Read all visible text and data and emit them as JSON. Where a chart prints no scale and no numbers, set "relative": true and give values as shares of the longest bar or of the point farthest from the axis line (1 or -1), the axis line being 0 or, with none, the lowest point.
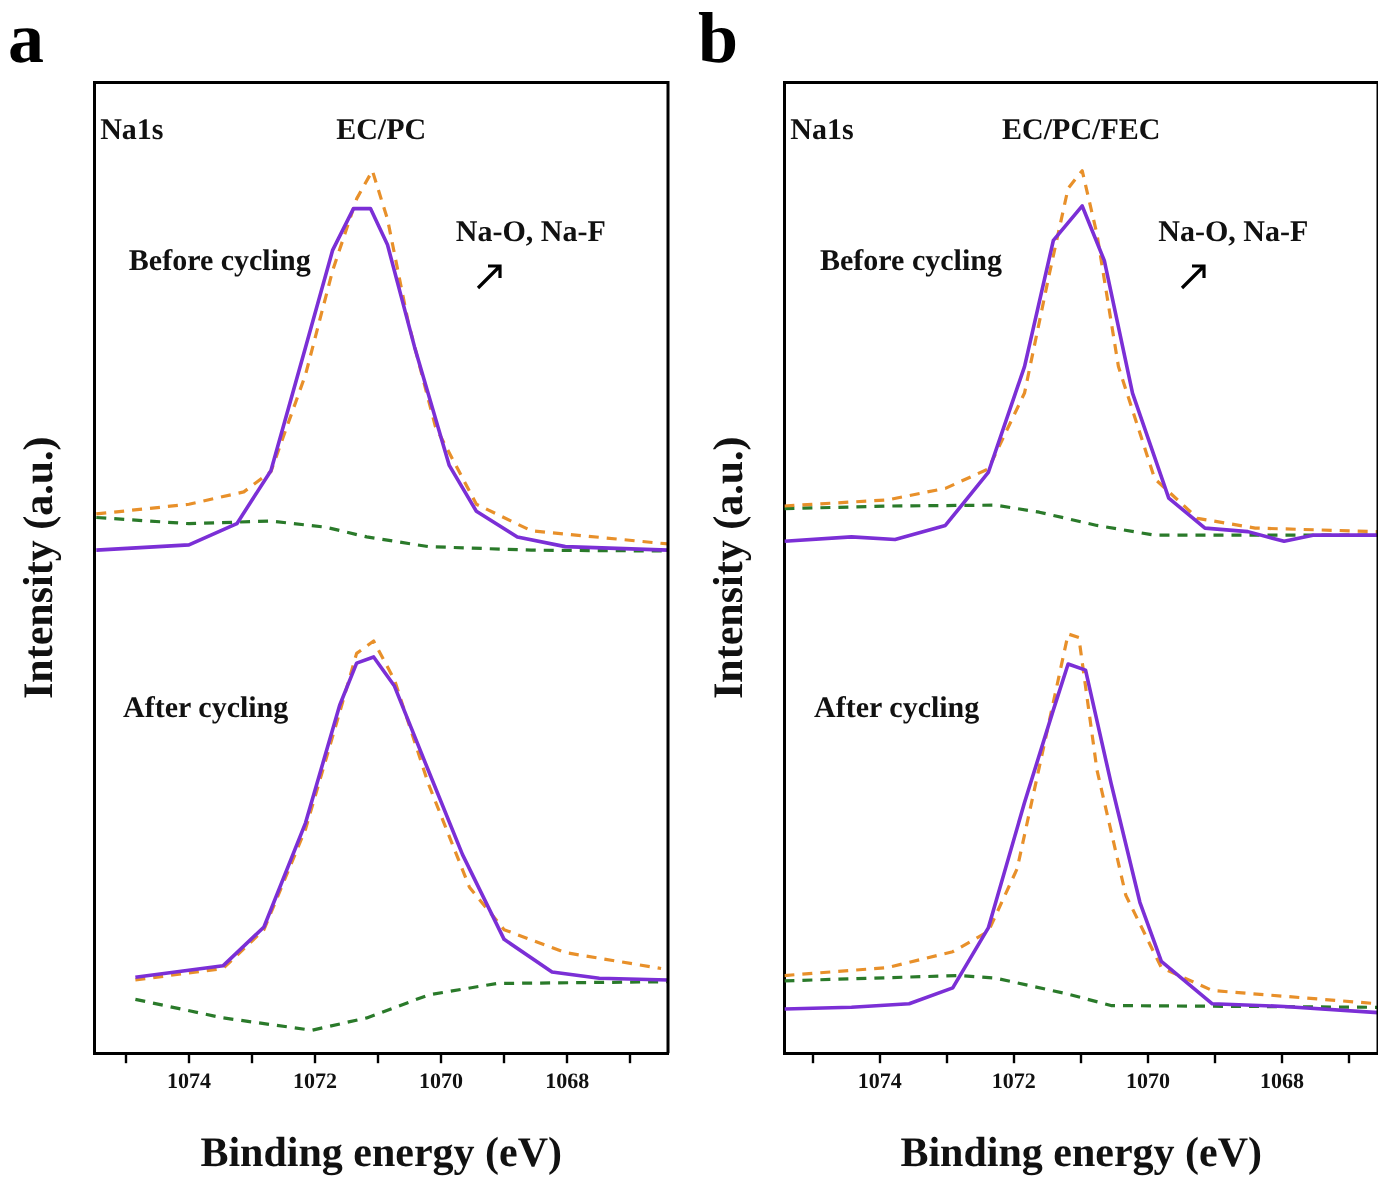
{
  "chart_data": [
    {
      "type": "line",
      "title": "a",
      "xlabel": "Binding energy (eV)",
      "ylabel": "Intensity (a.u.)",
      "relative": true,
      "grid": false,
      "legend": false,
      "marker": "none",
      "xlim": [
        1075.5,
        1066.4
      ],
      "xticks": [
        {
          "value": 1075,
          "label": null
        },
        1074,
        {
          "value": 1073,
          "label": null
        },
        1072,
        {
          "value": 1071,
          "label": null
        },
        1070,
        {
          "value": 1069,
          "label": null
        },
        1068,
        {
          "value": 1067,
          "label": null
        }
      ],
      "annotations": [
        "Na1s",
        "EC/PC",
        "Before cycling",
        "Na-O, Na-F",
        "After cycling"
      ],
      "series": [
        {
          "color": "#7b2fd6",
          "line_style": "solid",
          "x": [
            1075.47,
            1074,
            1073.24,
            1072.7,
            1072.15,
            1071.72,
            1071.39,
            1071.12,
            1070.85,
            1070.42,
            1069.87,
            1069.44,
            1068.79,
            1068.03,
            1066.4
          ],
          "values": [
            0.57,
            0.576,
            0.6,
            0.66,
            0.8,
            0.91,
            0.957,
            0.957,
            0.916,
            0.8,
            0.666,
            0.614,
            0.585,
            0.574,
            0.57
          ]
        },
        {
          "color": "#e8902a",
          "line_style": "dashed",
          "x": [
            1075.47,
            1074,
            1073.13,
            1072.7,
            1072.15,
            1071.72,
            1071.34,
            1071.09,
            1070.85,
            1070.52,
            1070.09,
            1069.44,
            1068.57,
            1066.4
          ],
          "values": [
            0.611,
            0.622,
            0.636,
            0.659,
            0.769,
            0.887,
            0.968,
            1.0,
            0.945,
            0.828,
            0.71,
            0.622,
            0.592,
            0.577
          ]
        },
        {
          "color": "#2a7a2a",
          "line_style": "dashed",
          "x": [
            1075.47,
            1074,
            1072.7,
            1071.83,
            1071.18,
            1070.2,
            1068.57,
            1066.4
          ],
          "values": [
            0.607,
            0.6,
            0.603,
            0.596,
            0.585,
            0.574,
            0.57,
            0.569
          ]
        },
        {
          "color": "#7b2fd6",
          "line_style": "solid",
          "x": [
            1074.85,
            1073.46,
            1072.81,
            1072.15,
            1071.61,
            1071.34,
            1071.07,
            1070.74,
            1070.2,
            1069.66,
            1069.0,
            1068.24,
            1067.49,
            1066.4
          ],
          "values": [
            0.086,
            0.099,
            0.143,
            0.261,
            0.394,
            0.442,
            0.449,
            0.416,
            0.32,
            0.225,
            0.129,
            0.092,
            0.085,
            0.083
          ]
        },
        {
          "color": "#e8902a",
          "line_style": "dashed",
          "x": [
            1074.85,
            1073.46,
            1072.81,
            1072.15,
            1071.61,
            1071.34,
            1071.07,
            1070.74,
            1070.2,
            1069.55,
            1069.0,
            1068.03,
            1066.51
          ],
          "values": [
            0.083,
            0.096,
            0.14,
            0.254,
            0.386,
            0.453,
            0.467,
            0.423,
            0.305,
            0.188,
            0.14,
            0.114,
            0.096
          ]
        },
        {
          "color": "#2a7a2a",
          "line_style": "dashed",
          "x": [
            1074.85,
            1073.46,
            1072.05,
            1071.18,
            1070.2,
            1069.12,
            1066.4
          ],
          "values": [
            0.061,
            0.04,
            0.026,
            0.04,
            0.066,
            0.079,
            0.081
          ]
        }
      ]
    },
    {
      "type": "line",
      "title": "b",
      "xlabel": "Binding energy (eV)",
      "ylabel": "Intensity (a.u.)",
      "relative": true,
      "grid": false,
      "legend": false,
      "marker": "none",
      "xlim": [
        1075.42,
        1066.57
      ],
      "xticks": [
        {
          "value": 1075,
          "label": null
        },
        1074,
        {
          "value": 1073,
          "label": null
        },
        1072,
        {
          "value": 1071,
          "label": null
        },
        1070,
        {
          "value": 1069,
          "label": null
        },
        1068,
        {
          "value": 1067,
          "label": null
        }
      ],
      "annotations": [
        "Na1s",
        "EC/PC/FEC",
        "Before cycling",
        "Na-O, Na-F",
        "After cycling"
      ],
      "series": [
        {
          "color": "#7b2fd6",
          "line_style": "solid",
          "x": [
            1075.42,
            1074.42,
            1073.77,
            1073.02,
            1072.38,
            1071.84,
            1071.41,
            1070.98,
            1070.65,
            1070.23,
            1069.69,
            1069.15,
            1068.51,
            1067.97,
            1067.54,
            1066.57
          ],
          "values": [
            0.58,
            0.585,
            0.582,
            0.598,
            0.658,
            0.778,
            0.921,
            0.96,
            0.898,
            0.748,
            0.629,
            0.595,
            0.591,
            0.58,
            0.587,
            0.587
          ]
        },
        {
          "color": "#e8902a",
          "line_style": "dashed",
          "x": [
            1075.42,
            1073.88,
            1073.02,
            1072.38,
            1071.84,
            1071.47,
            1071.19,
            1070.98,
            1070.76,
            1070.44,
            1069.9,
            1069.26,
            1068.4,
            1066.57
          ],
          "values": [
            0.62,
            0.627,
            0.64,
            0.662,
            0.748,
            0.883,
            0.98,
            1.0,
            0.928,
            0.778,
            0.651,
            0.606,
            0.595,
            0.591
          ]
        },
        {
          "color": "#2a7a2a",
          "line_style": "dashed",
          "x": [
            1075.42,
            1073.88,
            1072.27,
            1071.62,
            1070.76,
            1069.9,
            1066.57
          ],
          "values": [
            0.617,
            0.62,
            0.621,
            0.613,
            0.598,
            0.587,
            0.587
          ]
        },
        {
          "color": "#7b2fd6",
          "line_style": "solid",
          "x": [
            1075.42,
            1074.42,
            1073.56,
            1072.91,
            1072.38,
            1071.84,
            1071.41,
            1071.19,
            1070.93,
            1070.55,
            1070.12,
            1069.8,
            1069.04,
            1067.97,
            1066.57
          ],
          "values": [
            0.05,
            0.052,
            0.056,
            0.074,
            0.142,
            0.284,
            0.389,
            0.441,
            0.434,
            0.306,
            0.171,
            0.104,
            0.056,
            0.053,
            0.046
          ]
        },
        {
          "color": "#e8902a",
          "line_style": "dashed",
          "x": [
            1075.42,
            1073.88,
            1072.91,
            1072.38,
            1071.95,
            1071.52,
            1071.19,
            1071.03,
            1070.76,
            1070.33,
            1069.8,
            1069.04,
            1066.57
          ],
          "values": [
            0.088,
            0.097,
            0.115,
            0.138,
            0.209,
            0.359,
            0.475,
            0.471,
            0.321,
            0.179,
            0.097,
            0.071,
            0.056
          ]
        },
        {
          "color": "#2a7a2a",
          "line_style": "dashed",
          "x": [
            1075.42,
            1072.81,
            1072.27,
            1071.19,
            1070.55,
            1066.57
          ],
          "values": [
            0.082,
            0.088,
            0.085,
            0.067,
            0.054,
            0.052
          ]
        }
      ]
    }
  ]
}
